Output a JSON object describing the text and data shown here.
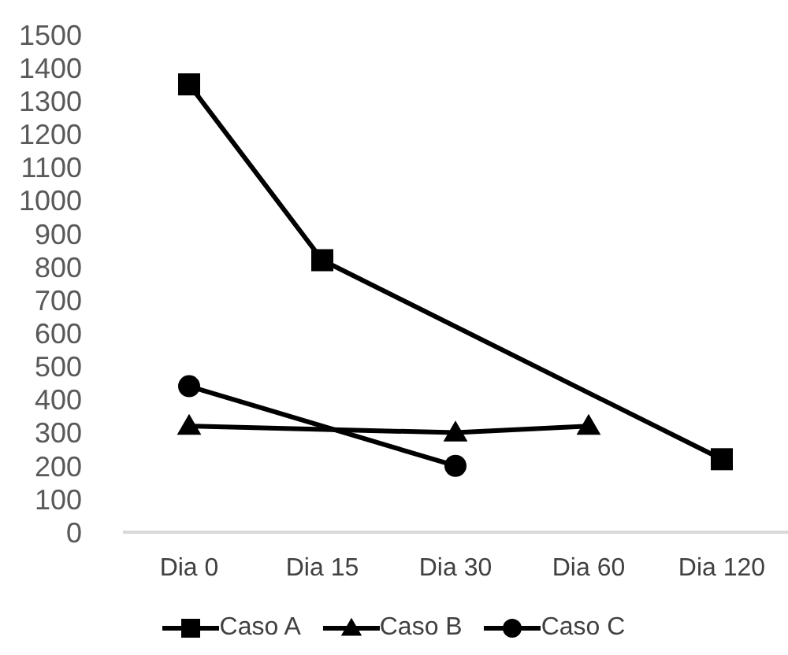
{
  "chart_data": {
    "type": "line",
    "categories": [
      "Dia 0",
      "Dia 15",
      "Dia 30",
      "Dia 60",
      "Dia 120"
    ],
    "series": [
      {
        "name": "Caso A",
        "color": "#000000",
        "marker": "square",
        "values": [
          1350,
          820,
          null,
          null,
          220
        ]
      },
      {
        "name": "Caso B",
        "color": "#000000",
        "marker": "triangle",
        "values": [
          320,
          null,
          300,
          320,
          null
        ]
      },
      {
        "name": "Caso C",
        "color": "#000000",
        "marker": "circle",
        "values": [
          440,
          null,
          200,
          null,
          null
        ]
      }
    ],
    "ylim": [
      0,
      1500
    ],
    "yticks": [
      0,
      100,
      200,
      300,
      400,
      500,
      600,
      700,
      800,
      900,
      1000,
      1100,
      1200,
      1300,
      1400,
      1500
    ],
    "grid": false,
    "legend": "bottom"
  }
}
